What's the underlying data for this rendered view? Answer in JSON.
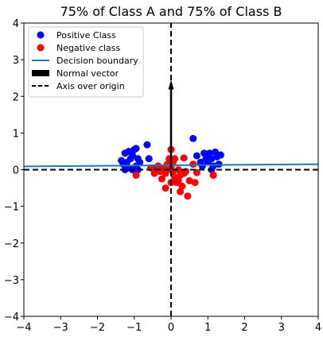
{
  "chart_data": {
    "type": "scatter",
    "title": "75% of Class A and 75% of Class B",
    "xlabel": "",
    "ylabel": "",
    "xlim": [
      -4,
      4
    ],
    "ylim": [
      -4,
      4
    ],
    "xticks": [
      -4,
      -3,
      -2,
      -1,
      0,
      1,
      2,
      3,
      4
    ],
    "yticks": [
      -4,
      -3,
      -2,
      -1,
      0,
      1,
      2,
      3,
      4
    ],
    "grid": false,
    "legend_position": "top-left",
    "series": [
      {
        "name": "Positive Class",
        "kind": "points",
        "color": "#0000ff",
        "points": [
          [
            -1.35,
            0.25
          ],
          [
            -1.25,
            0.45
          ],
          [
            -1.2,
            0.2
          ],
          [
            -1.15,
            0.5
          ],
          [
            -1.1,
            0.3
          ],
          [
            -1.05,
            0.4
          ],
          [
            -1.0,
            0.55
          ],
          [
            -0.95,
            0.58
          ],
          [
            -1.15,
            0.05
          ],
          [
            -1.05,
            0.0
          ],
          [
            -0.9,
            0.3
          ],
          [
            -0.85,
            0.2
          ],
          [
            -1.3,
            0.15
          ],
          [
            -0.95,
            0.1
          ],
          [
            -0.65,
            0.68
          ],
          [
            -0.6,
            0.3
          ],
          [
            -0.5,
            0.05
          ],
          [
            -1.25,
            0.0
          ],
          [
            -0.9,
            0.0
          ],
          [
            0.6,
            0.85
          ],
          [
            0.7,
            0.38
          ],
          [
            0.8,
            0.2
          ],
          [
            0.9,
            0.45
          ],
          [
            0.95,
            0.3
          ],
          [
            1.0,
            0.2
          ],
          [
            1.05,
            0.45
          ],
          [
            1.1,
            0.3
          ],
          [
            1.15,
            0.1
          ],
          [
            1.2,
            0.48
          ],
          [
            1.25,
            0.35
          ],
          [
            1.3,
            0.15
          ],
          [
            1.35,
            0.4
          ],
          [
            0.85,
            0.1
          ],
          [
            1.1,
            0.0
          ]
        ]
      },
      {
        "name": "Negative class",
        "kind": "points",
        "color": "#ff0000",
        "points": [
          [
            -0.95,
            -0.15
          ],
          [
            -0.55,
            0.05
          ],
          [
            -0.45,
            -0.1
          ],
          [
            -0.35,
            0.1
          ],
          [
            -0.3,
            -0.05
          ],
          [
            -0.25,
            -0.25
          ],
          [
            -0.2,
            0.05
          ],
          [
            -0.15,
            -0.5
          ],
          [
            -0.15,
            -0.1
          ],
          [
            -0.1,
            0.0
          ],
          [
            -0.05,
            0.3
          ],
          [
            0.0,
            0.55
          ],
          [
            0.0,
            -0.35
          ],
          [
            0.05,
            0.2
          ],
          [
            0.05,
            -0.05
          ],
          [
            0.1,
            0.3
          ],
          [
            0.1,
            -0.2
          ],
          [
            0.15,
            -0.35
          ],
          [
            0.2,
            -0.3
          ],
          [
            0.2,
            0.0
          ],
          [
            0.25,
            -0.15
          ],
          [
            0.25,
            -0.6
          ],
          [
            0.3,
            -0.45
          ],
          [
            0.35,
            -0.1
          ],
          [
            0.35,
            0.32
          ],
          [
            0.4,
            -0.05
          ],
          [
            0.45,
            -0.72
          ],
          [
            0.5,
            -0.3
          ],
          [
            0.6,
            0.15
          ],
          [
            0.65,
            -0.35
          ],
          [
            0.7,
            -0.08
          ],
          [
            1.15,
            -0.15
          ],
          [
            0.0,
            0.1
          ],
          [
            -0.1,
            0.15
          ]
        ]
      },
      {
        "name": "Decision boundary",
        "kind": "line",
        "color": "#1f77b4",
        "points": [
          [
            -4,
            0.09
          ],
          [
            4,
            0.15
          ]
        ]
      },
      {
        "name": "Normal vector",
        "kind": "arrow",
        "color": "#000000",
        "points": [
          [
            0,
            0
          ],
          [
            0,
            2.45
          ]
        ]
      },
      {
        "name": "Axis over origin",
        "kind": "dashed-axes",
        "color": "#000000",
        "points": [
          [
            -4,
            0
          ],
          [
            4,
            0
          ],
          [
            0,
            -4
          ],
          [
            0,
            4
          ]
        ]
      }
    ]
  }
}
